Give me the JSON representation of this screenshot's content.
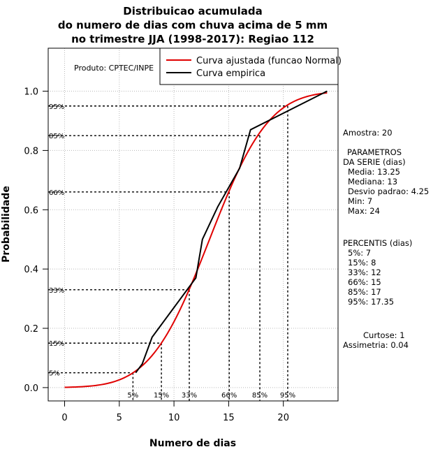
{
  "chart_data": {
    "type": "line",
    "title": [
      "Distribuicao acumulada",
      "do numero de dias com chuva acima de 5 mm",
      "no trimestre JJA (1998-2017): Regiao 112"
    ],
    "xlabel": "Numero de dias",
    "ylabel": "Probabilidade",
    "xlim": [
      -1.5,
      25.0
    ],
    "ylim": [
      -0.045,
      1.145
    ],
    "x_ticks": [
      0,
      5,
      10,
      15,
      20
    ],
    "y_ticks": [
      0.0,
      0.2,
      0.4,
      0.6,
      0.8,
      1.0
    ],
    "y_tick_labels": [
      "0.0",
      "0.2",
      "0.4",
      "0.6",
      "0.8",
      "1.0"
    ],
    "grid": true,
    "legend_position": "top-right",
    "product_label": "Produto: CPTEC/INPE",
    "series": [
      {
        "name": "Curva ajustada (funcao Normal)",
        "color": "#e00000",
        "distribution": {
          "mean": 13.25,
          "sd": 4.25
        },
        "x_range": [
          0,
          24
        ]
      },
      {
        "name": "Curva empirica",
        "color": "#000000",
        "x": [
          6.5,
          7.1,
          8.0,
          12.0,
          12.6,
          14.0,
          16.0,
          17.0,
          24.0
        ],
        "y": [
          0.05,
          0.08,
          0.17,
          0.37,
          0.5,
          0.61,
          0.74,
          0.87,
          1.0
        ]
      }
    ],
    "percentile_markers": [
      {
        "label": "5%",
        "x": 6.25,
        "y": 0.05
      },
      {
        "label": "15%",
        "x": 8.85,
        "y": 0.15
      },
      {
        "label": "33%",
        "x": 11.4,
        "y": 0.33
      },
      {
        "label": "66%",
        "x": 15.05,
        "y": 0.66
      },
      {
        "label": "85%",
        "x": 17.85,
        "y": 0.85
      },
      {
        "label": "95%",
        "x": 20.4,
        "y": 0.95
      }
    ],
    "side_panel": {
      "amostra": "Amostra: 20",
      "parametros_title_1": "PARAMETROS",
      "parametros_title_2": "DA SERIE (dias)",
      "media": "Media: 13.25",
      "mediana": "Mediana: 13",
      "desvio": "Desvio padrao: 4.25",
      "min": "Min: 7",
      "max": "Max: 24",
      "percentis_title": "PERCENTIS (dias)",
      "p5": "5%: 7",
      "p15": "15%: 8",
      "p33": "33%: 12",
      "p66": "66%: 15",
      "p85": "85%: 17",
      "p95": "95%: 17.35",
      "curtose": "Curtose: 1",
      "assimetria": "Assimetria: 0.04"
    }
  }
}
